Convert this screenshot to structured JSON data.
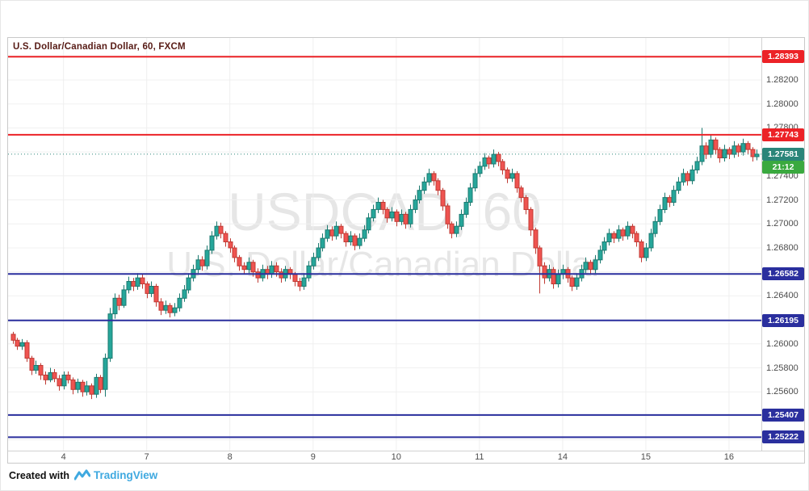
{
  "header": {
    "legend": "U.S. Dollar/Canadian Dollar, 60, FXCM"
  },
  "watermark": {
    "line1": "USDCAD, 60",
    "line2": "U.S. Dollar/Canadian Dollar"
  },
  "footer": {
    "created_with": "Created with",
    "brand": "TradingView"
  },
  "chart_data": {
    "type": "candlestick",
    "title": "U.S. Dollar/Canadian Dollar, 60, FXCM",
    "symbol": "USDCAD",
    "interval_minutes": 60,
    "data_provider": "FXCM",
    "ylim": [
      1.2511,
      1.2855
    ],
    "grid_step": 0.002,
    "grid": true,
    "up_color": "#26a69a",
    "up_border": "#1c7a70",
    "down_color": "#ef5350",
    "down_border": "#c03b34",
    "y_ticks": [
      "1.28200",
      "1.28000",
      "1.27800",
      "1.27400",
      "1.27200",
      "1.27000",
      "1.26800",
      "1.26400",
      "1.26000",
      "1.25800",
      "1.25600"
    ],
    "x_ticks": [
      {
        "label": "4",
        "bar": 11
      },
      {
        "label": "7",
        "bar": 29
      },
      {
        "label": "8",
        "bar": 47
      },
      {
        "label": "9",
        "bar": 65
      },
      {
        "label": "10",
        "bar": 83
      },
      {
        "label": "11",
        "bar": 101
      },
      {
        "label": "14",
        "bar": 119
      },
      {
        "label": "15",
        "bar": 137
      },
      {
        "label": "16",
        "bar": 155
      }
    ],
    "levels": [
      {
        "label": "1.28393",
        "value": 1.28393,
        "color": "#ec2227"
      },
      {
        "label": "1.27743",
        "value": 1.27743,
        "color": "#ec2227"
      },
      {
        "label": "1.26582",
        "value": 1.26582,
        "color": "#2a2f9e"
      },
      {
        "label": "1.26195",
        "value": 1.26195,
        "color": "#2a2f9e"
      },
      {
        "label": "1.25407",
        "value": 1.25407,
        "color": "#2a2f9e"
      },
      {
        "label": "1.25222",
        "value": 1.25222,
        "color": "#2a2f9e"
      }
    ],
    "last_price": {
      "label": "1.27581",
      "value": 1.27581,
      "badge_color": "#2a8579",
      "line_color": "#2a8579",
      "countdown_label": "21:12",
      "countdown_color": "#3aa93f"
    },
    "candles": [
      [
        1.2608,
        1.261,
        1.26,
        1.2603
      ],
      [
        1.2603,
        1.2605,
        1.2595,
        1.2598
      ],
      [
        1.2598,
        1.2604,
        1.2595,
        1.2601
      ],
      [
        1.2601,
        1.2603,
        1.2585,
        1.2588
      ],
      [
        1.2588,
        1.259,
        1.2574,
        1.2578
      ],
      [
        1.2578,
        1.2586,
        1.2575,
        1.2582
      ],
      [
        1.2582,
        1.2584,
        1.257,
        1.2574
      ],
      [
        1.2574,
        1.2577,
        1.2566,
        1.257
      ],
      [
        1.257,
        1.258,
        1.2568,
        1.2576
      ],
      [
        1.2576,
        1.2579,
        1.2568,
        1.2571
      ],
      [
        1.2571,
        1.2574,
        1.2561,
        1.2565
      ],
      [
        1.2565,
        1.2577,
        1.2562,
        1.2574
      ],
      [
        1.2574,
        1.2577,
        1.2567,
        1.257
      ],
      [
        1.257,
        1.2572,
        1.2558,
        1.2562
      ],
      [
        1.2562,
        1.2571,
        1.2559,
        1.2568
      ],
      [
        1.2568,
        1.257,
        1.2556,
        1.256
      ],
      [
        1.256,
        1.2569,
        1.2557,
        1.2565
      ],
      [
        1.2565,
        1.2567,
        1.2554,
        1.2558
      ],
      [
        1.2558,
        1.2575,
        1.2555,
        1.2572
      ],
      [
        1.2572,
        1.2574,
        1.2559,
        1.2562
      ],
      [
        1.2562,
        1.2592,
        1.2556,
        1.2588
      ],
      [
        1.2588,
        1.263,
        1.2585,
        1.2625
      ],
      [
        1.2625,
        1.2642,
        1.2621,
        1.2638
      ],
      [
        1.2638,
        1.2641,
        1.2628,
        1.2632
      ],
      [
        1.2632,
        1.2649,
        1.263,
        1.2645
      ],
      [
        1.2645,
        1.2656,
        1.2642,
        1.2652
      ],
      [
        1.2652,
        1.2655,
        1.2644,
        1.2648
      ],
      [
        1.2648,
        1.2659,
        1.2645,
        1.2655
      ],
      [
        1.2655,
        1.2658,
        1.2646,
        1.265
      ],
      [
        1.265,
        1.2652,
        1.2638,
        1.2642
      ],
      [
        1.2642,
        1.2652,
        1.2639,
        1.2648
      ],
      [
        1.2648,
        1.265,
        1.2631,
        1.2635
      ],
      [
        1.2635,
        1.2638,
        1.2624,
        1.2628
      ],
      [
        1.2628,
        1.2636,
        1.2625,
        1.2632
      ],
      [
        1.2632,
        1.2634,
        1.2622,
        1.2626
      ],
      [
        1.2626,
        1.2634,
        1.2623,
        1.263
      ],
      [
        1.263,
        1.2642,
        1.2627,
        1.2638
      ],
      [
        1.2638,
        1.2649,
        1.2635,
        1.2645
      ],
      [
        1.2645,
        1.2659,
        1.2642,
        1.2655
      ],
      [
        1.2655,
        1.2666,
        1.2652,
        1.2662
      ],
      [
        1.2662,
        1.2674,
        1.2659,
        1.267
      ],
      [
        1.267,
        1.2673,
        1.2661,
        1.2665
      ],
      [
        1.2665,
        1.2682,
        1.2662,
        1.2678
      ],
      [
        1.2678,
        1.2694,
        1.2675,
        1.269
      ],
      [
        1.269,
        1.2702,
        1.2687,
        1.2698
      ],
      [
        1.2698,
        1.2701,
        1.2688,
        1.2692
      ],
      [
        1.2692,
        1.2694,
        1.2681,
        1.2685
      ],
      [
        1.2685,
        1.2688,
        1.2676,
        1.268
      ],
      [
        1.268,
        1.2682,
        1.2668,
        1.2672
      ],
      [
        1.2672,
        1.2674,
        1.2661,
        1.2665
      ],
      [
        1.2665,
        1.2668,
        1.2658,
        1.2662
      ],
      [
        1.2662,
        1.2672,
        1.2659,
        1.2668
      ],
      [
        1.2668,
        1.267,
        1.2656,
        1.266
      ],
      [
        1.266,
        1.2663,
        1.2651,
        1.2655
      ],
      [
        1.2655,
        1.2666,
        1.2652,
        1.2662
      ],
      [
        1.2662,
        1.2665,
        1.2654,
        1.2658
      ],
      [
        1.2658,
        1.2669,
        1.2655,
        1.2665
      ],
      [
        1.2665,
        1.2668,
        1.2656,
        1.266
      ],
      [
        1.266,
        1.2663,
        1.2651,
        1.2655
      ],
      [
        1.2655,
        1.2665,
        1.2652,
        1.2662
      ],
      [
        1.2662,
        1.2664,
        1.2654,
        1.2658
      ],
      [
        1.2658,
        1.266,
        1.2648,
        1.2652
      ],
      [
        1.2652,
        1.2655,
        1.2644,
        1.2648
      ],
      [
        1.2648,
        1.2659,
        1.2645,
        1.2655
      ],
      [
        1.2655,
        1.2669,
        1.2652,
        1.2665
      ],
      [
        1.2665,
        1.2676,
        1.2662,
        1.2672
      ],
      [
        1.2672,
        1.2684,
        1.2669,
        1.268
      ],
      [
        1.268,
        1.2692,
        1.2677,
        1.2688
      ],
      [
        1.2688,
        1.2699,
        1.2685,
        1.2695
      ],
      [
        1.2695,
        1.2698,
        1.2686,
        1.269
      ],
      [
        1.269,
        1.2702,
        1.2687,
        1.2698
      ],
      [
        1.2698,
        1.27,
        1.2688,
        1.2692
      ],
      [
        1.2692,
        1.2694,
        1.2681,
        1.2685
      ],
      [
        1.2685,
        1.2694,
        1.2682,
        1.269
      ],
      [
        1.269,
        1.2692,
        1.2678,
        1.2682
      ],
      [
        1.2682,
        1.2692,
        1.2679,
        1.2688
      ],
      [
        1.2688,
        1.2699,
        1.2685,
        1.2695
      ],
      [
        1.2695,
        1.2709,
        1.2692,
        1.2705
      ],
      [
        1.2705,
        1.2716,
        1.2702,
        1.2712
      ],
      [
        1.2712,
        1.2722,
        1.2709,
        1.2718
      ],
      [
        1.2718,
        1.272,
        1.2708,
        1.2712
      ],
      [
        1.2712,
        1.2714,
        1.2701,
        1.2705
      ],
      [
        1.2705,
        1.2714,
        1.2702,
        1.271
      ],
      [
        1.271,
        1.2712,
        1.2698,
        1.2702
      ],
      [
        1.2702,
        1.2712,
        1.2699,
        1.2708
      ],
      [
        1.2708,
        1.271,
        1.2696,
        1.27
      ],
      [
        1.27,
        1.2716,
        1.2697,
        1.2712
      ],
      [
        1.2712,
        1.2724,
        1.2709,
        1.272
      ],
      [
        1.272,
        1.2732,
        1.2717,
        1.2728
      ],
      [
        1.2728,
        1.2739,
        1.2725,
        1.2735
      ],
      [
        1.2735,
        1.2746,
        1.2732,
        1.2742
      ],
      [
        1.2742,
        1.2744,
        1.2732,
        1.2736
      ],
      [
        1.2736,
        1.2738,
        1.2724,
        1.2728
      ],
      [
        1.2728,
        1.273,
        1.2711,
        1.2715
      ],
      [
        1.2715,
        1.2717,
        1.2696,
        1.27
      ],
      [
        1.27,
        1.2702,
        1.2688,
        1.2692
      ],
      [
        1.2692,
        1.2702,
        1.2689,
        1.2698
      ],
      [
        1.2698,
        1.2712,
        1.2695,
        1.2708
      ],
      [
        1.2708,
        1.2722,
        1.2705,
        1.2718
      ],
      [
        1.2718,
        1.2734,
        1.2715,
        1.273
      ],
      [
        1.273,
        1.2746,
        1.2727,
        1.2742
      ],
      [
        1.2742,
        1.2752,
        1.2739,
        1.2748
      ],
      [
        1.2748,
        1.2759,
        1.2745,
        1.2755
      ],
      [
        1.2755,
        1.2757,
        1.2746,
        1.275
      ],
      [
        1.275,
        1.2762,
        1.2747,
        1.2758
      ],
      [
        1.2758,
        1.276,
        1.2748,
        1.2752
      ],
      [
        1.2752,
        1.2754,
        1.2741,
        1.2745
      ],
      [
        1.2745,
        1.2747,
        1.2734,
        1.2738
      ],
      [
        1.2738,
        1.2746,
        1.2735,
        1.2742
      ],
      [
        1.2742,
        1.2744,
        1.2726,
        1.273
      ],
      [
        1.273,
        1.2732,
        1.2718,
        1.2722
      ],
      [
        1.2722,
        1.2724,
        1.2708,
        1.2712
      ],
      [
        1.2712,
        1.2714,
        1.269,
        1.2695
      ],
      [
        1.2695,
        1.2697,
        1.2675,
        1.268
      ],
      [
        1.268,
        1.2682,
        1.2642,
        1.2665
      ],
      [
        1.2665,
        1.2668,
        1.265,
        1.2655
      ],
      [
        1.2655,
        1.2666,
        1.2652,
        1.2662
      ],
      [
        1.2662,
        1.2664,
        1.2646,
        1.265
      ],
      [
        1.265,
        1.2662,
        1.2647,
        1.2658
      ],
      [
        1.2658,
        1.2666,
        1.2654,
        1.2662
      ],
      [
        1.2662,
        1.2664,
        1.2651,
        1.2655
      ],
      [
        1.2655,
        1.2657,
        1.2644,
        1.2648
      ],
      [
        1.2648,
        1.2659,
        1.2645,
        1.2655
      ],
      [
        1.2655,
        1.2666,
        1.2652,
        1.2662
      ],
      [
        1.2662,
        1.2672,
        1.2659,
        1.2668
      ],
      [
        1.2668,
        1.267,
        1.2658,
        1.2662
      ],
      [
        1.2662,
        1.2674,
        1.2659,
        1.267
      ],
      [
        1.267,
        1.2682,
        1.2667,
        1.2678
      ],
      [
        1.2678,
        1.2689,
        1.2675,
        1.2685
      ],
      [
        1.2685,
        1.2696,
        1.2682,
        1.2692
      ],
      [
        1.2692,
        1.2694,
        1.2684,
        1.2688
      ],
      [
        1.2688,
        1.2699,
        1.2685,
        1.2695
      ],
      [
        1.2695,
        1.2697,
        1.2686,
        1.269
      ],
      [
        1.269,
        1.2702,
        1.2687,
        1.2698
      ],
      [
        1.2698,
        1.27,
        1.2688,
        1.2692
      ],
      [
        1.2692,
        1.2694,
        1.2681,
        1.2685
      ],
      [
        1.2685,
        1.2687,
        1.2668,
        1.2672
      ],
      [
        1.2672,
        1.2684,
        1.2669,
        1.268
      ],
      [
        1.268,
        1.2696,
        1.2677,
        1.2692
      ],
      [
        1.2692,
        1.2706,
        1.2689,
        1.2702
      ],
      [
        1.2702,
        1.2716,
        1.2699,
        1.2712
      ],
      [
        1.2712,
        1.2726,
        1.2709,
        1.2722
      ],
      [
        1.2722,
        1.2724,
        1.2714,
        1.2718
      ],
      [
        1.2718,
        1.2732,
        1.2715,
        1.2728
      ],
      [
        1.2728,
        1.2739,
        1.2725,
        1.2735
      ],
      [
        1.2735,
        1.2746,
        1.2732,
        1.2742
      ],
      [
        1.2742,
        1.2744,
        1.2732,
        1.2736
      ],
      [
        1.2736,
        1.2749,
        1.2733,
        1.2745
      ],
      [
        1.2745,
        1.2756,
        1.2742,
        1.2752
      ],
      [
        1.2752,
        1.278,
        1.2749,
        1.2765
      ],
      [
        1.2765,
        1.2768,
        1.2754,
        1.2758
      ],
      [
        1.2758,
        1.2774,
        1.2755,
        1.277
      ],
      [
        1.277,
        1.2772,
        1.2758,
        1.2762
      ],
      [
        1.2762,
        1.2764,
        1.2751,
        1.2755
      ],
      [
        1.2755,
        1.2766,
        1.2752,
        1.2762
      ],
      [
        1.2762,
        1.2764,
        1.2754,
        1.2758
      ],
      [
        1.2758,
        1.2769,
        1.2755,
        1.2765
      ],
      [
        1.2765,
        1.2767,
        1.2756,
        1.276
      ],
      [
        1.276,
        1.2771,
        1.2757,
        1.2767
      ],
      [
        1.2767,
        1.2769,
        1.2758,
        1.2762
      ],
      [
        1.2762,
        1.2764,
        1.2752,
        1.2756
      ],
      [
        1.2756,
        1.2762,
        1.2753,
        1.27581
      ]
    ]
  }
}
